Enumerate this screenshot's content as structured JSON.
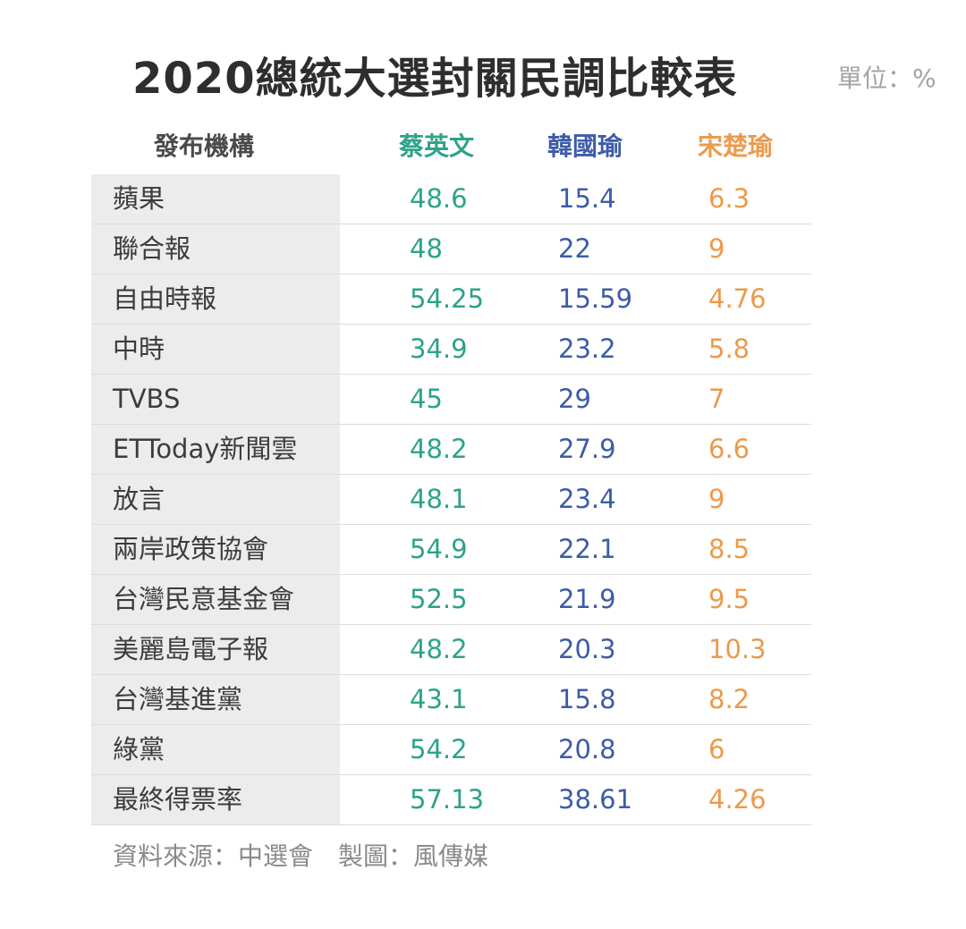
{
  "colors": {
    "title": "#2e2e2e",
    "series": [
      "#2fa28a",
      "#3d5ca8",
      "#ec9a4c"
    ],
    "row_label_bg": "#ececec"
  },
  "chart_data": {
    "type": "table",
    "title": "2020總統大選封關民調比較表",
    "unit_label": "單位：%",
    "column_header": "發布機構",
    "series": [
      {
        "name": "蔡英文",
        "color": "#2fa28a"
      },
      {
        "name": "韓國瑜",
        "color": "#3d5ca8"
      },
      {
        "name": "宋楚瑜",
        "color": "#ec9a4c"
      }
    ],
    "rows": [
      {
        "label": "蘋果",
        "values": [
          "48.6",
          "15.4",
          "6.3"
        ]
      },
      {
        "label": "聯合報",
        "values": [
          "48",
          "22",
          "9"
        ]
      },
      {
        "label": "自由時報",
        "values": [
          "54.25",
          "15.59",
          "4.76"
        ]
      },
      {
        "label": "中時",
        "values": [
          "34.9",
          "23.2",
          "5.8"
        ]
      },
      {
        "label": "TVBS",
        "values": [
          "45",
          "29",
          "7"
        ]
      },
      {
        "label": "ETToday新聞雲",
        "values": [
          "48.2",
          "27.9",
          "6.6"
        ]
      },
      {
        "label": "放言",
        "values": [
          "48.1",
          "23.4",
          "9"
        ]
      },
      {
        "label": "兩岸政策協會",
        "values": [
          "54.9",
          "22.1",
          "8.5"
        ]
      },
      {
        "label": "台灣民意基金會",
        "values": [
          "52.5",
          "21.9",
          "9.5"
        ]
      },
      {
        "label": "美麗島電子報",
        "values": [
          "48.2",
          "20.3",
          "10.3"
        ]
      },
      {
        "label": "台灣基進黨",
        "values": [
          "43.1",
          "15.8",
          "8.2"
        ]
      },
      {
        "label": "綠黨",
        "values": [
          "54.2",
          "20.8",
          "6"
        ]
      },
      {
        "label": "最終得票率",
        "values": [
          "57.13",
          "38.61",
          "4.26"
        ]
      }
    ],
    "source": "資料來源：中選會　製圖：風傳媒"
  }
}
